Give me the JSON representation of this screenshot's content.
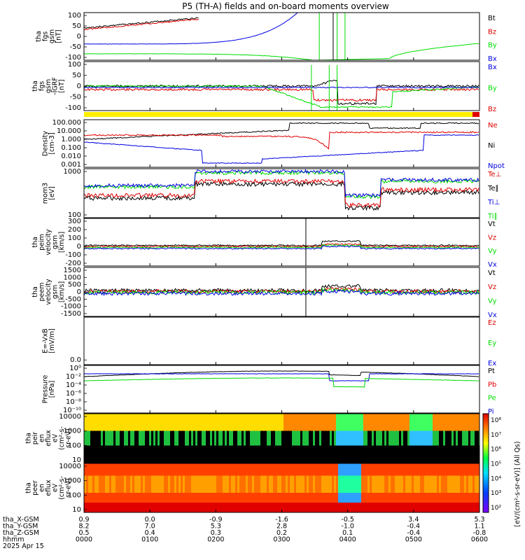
{
  "title": "P5 (TH-A) fields and on-board moments overview",
  "colors": {
    "black": "#000000",
    "red": "#e00000",
    "green": "#00dd00",
    "blue": "#0000e0",
    "yellow": "#ffee00"
  },
  "chart_data": [
    {
      "type": "line",
      "ylabel": [
        "tha",
        "fgs",
        "gsm",
        "[nT]"
      ],
      "yticks": [
        "100",
        "50",
        "0",
        "-50",
        "-100"
      ],
      "ylim": [
        -100,
        100
      ],
      "series": [
        {
          "name": "Bt",
          "color": "#000000"
        },
        {
          "name": "Bz",
          "color": "#e00000"
        },
        {
          "name": "By",
          "color": "#00dd00"
        },
        {
          "name": "Bx",
          "color": "#0000e0"
        }
      ]
    },
    {
      "type": "line",
      "ylabel": [
        "tha",
        "fgs",
        "gsm",
        "-IGRF",
        "[nT]"
      ],
      "yticks": [
        "100",
        "50",
        "0",
        "-50",
        "-100"
      ],
      "ylim": [
        -120,
        120
      ],
      "series": [
        {
          "name": "Bx",
          "color": "#0000e0"
        },
        {
          "name": "By",
          "color": "#00dd00"
        },
        {
          "name": "Bz",
          "color": "#e00000"
        }
      ]
    },
    {
      "type": "line",
      "ylabel": [
        "Density",
        "[cm-3]"
      ],
      "yticks": [
        "100.000",
        "10.000",
        "1.000",
        "0.100",
        "0.010",
        "0.001"
      ],
      "log": true,
      "series": [
        {
          "name": "Ne",
          "color": "#e00000"
        },
        {
          "name": "Ni",
          "color": "#000000"
        },
        {
          "name": "Npot",
          "color": "#0000e0"
        }
      ]
    },
    {
      "type": "line",
      "ylabel": [
        "mom3",
        "[eV]"
      ],
      "yticks": [
        "1000",
        "100"
      ],
      "log": true,
      "series": [
        {
          "name": "Te⊥",
          "color": "#e00000"
        },
        {
          "name": "Te∥",
          "color": "#000000"
        },
        {
          "name": "Ti⊥",
          "color": "#0000e0"
        },
        {
          "name": "Ti∥",
          "color": "#00dd00"
        }
      ]
    },
    {
      "type": "line",
      "ylabel": [
        "tha",
        "peim",
        "velocity",
        "gsm",
        "[km/s]"
      ],
      "yticks": [
        "300",
        "200",
        "100",
        "0",
        "-100",
        "-200"
      ],
      "ylim": [
        -200,
        300
      ],
      "series": [
        {
          "name": "Vt",
          "color": "#000000"
        },
        {
          "name": "Vz",
          "color": "#e00000"
        },
        {
          "name": "Vy",
          "color": "#00dd00"
        },
        {
          "name": "Vx",
          "color": "#0000e0"
        }
      ]
    },
    {
      "type": "line",
      "ylabel": [
        "tha",
        "peem",
        "velocity",
        "gsm",
        "[km/s]"
      ],
      "yticks": [
        "1500",
        "1000",
        "500",
        "0",
        "-500",
        "-1000",
        "-1500"
      ],
      "ylim": [
        -1500,
        1500
      ],
      "series": [
        {
          "name": "Vt",
          "color": "#000000"
        },
        {
          "name": "Vz",
          "color": "#e00000"
        },
        {
          "name": "Vy",
          "color": "#00dd00"
        },
        {
          "name": "Vx",
          "color": "#0000e0"
        }
      ]
    },
    {
      "type": "line",
      "ylabel": [
        "E=-VxB",
        "[mV/m]"
      ],
      "yticks": [
        "0.0"
      ],
      "series": [
        {
          "name": "Ez",
          "color": "#e00000"
        },
        {
          "name": "Ey",
          "color": "#00dd00"
        },
        {
          "name": "Ex",
          "color": "#0000e0"
        }
      ]
    },
    {
      "type": "line",
      "ylabel": [
        "Pressure",
        "[nPa]"
      ],
      "yticks": [
        "10⁰",
        "10⁻²",
        "10⁻⁴",
        "10⁻⁶",
        "10⁻⁸",
        "10⁻¹⁰"
      ],
      "log": true,
      "series": [
        {
          "name": "Pt",
          "color": "#000000"
        },
        {
          "name": "Pb",
          "color": "#e00000"
        },
        {
          "name": "Pe",
          "color": "#00dd00"
        },
        {
          "name": "Pi",
          "color": "#0000e0"
        }
      ]
    },
    {
      "type": "heatmap",
      "ylabel": [
        "tha",
        "peir",
        "en",
        "eflux",
        "eV",
        "(cm²-s-",
        "sr-eV)"
      ],
      "yticks": [
        "10000",
        "1000",
        "100",
        "10"
      ]
    },
    {
      "type": "heatmap",
      "ylabel": [
        "tha",
        "peer",
        "en",
        "eflux",
        "eV",
        "(cm²-s-",
        "sr-eV)"
      ],
      "yticks": [
        "10000",
        "1000",
        "100",
        "10"
      ]
    }
  ],
  "colorbar": {
    "ticks": [
      "10⁸",
      "10⁷",
      "10⁶",
      "10⁵",
      "10⁴",
      "10³",
      "10²"
    ],
    "label": "[eV/(cm²-s-sr-eV)] (All Qs)"
  },
  "xaxis": {
    "rows": [
      {
        "label": "tha_X-GSM",
        "values": [
          "0.9",
          "0.0",
          "-0.9",
          "-1.6",
          "-0.5",
          "3.4",
          "5.3"
        ]
      },
      {
        "label": "tha_Y-GSM",
        "values": [
          "8.2",
          "7.0",
          "5.3",
          "2.8",
          "-1.0",
          "-0.4",
          "1.1"
        ]
      },
      {
        "label": "tha_Z-GSM",
        "values": [
          "0.5",
          "0.4",
          "0.3",
          "0.2",
          "0.1",
          "-0.4",
          "-0.8"
        ]
      },
      {
        "label": "hhmm",
        "values": [
          "0000",
          "0100",
          "0200",
          "0300",
          "0400",
          "0500",
          "0600"
        ]
      }
    ],
    "date": "2025 Apr 15"
  }
}
